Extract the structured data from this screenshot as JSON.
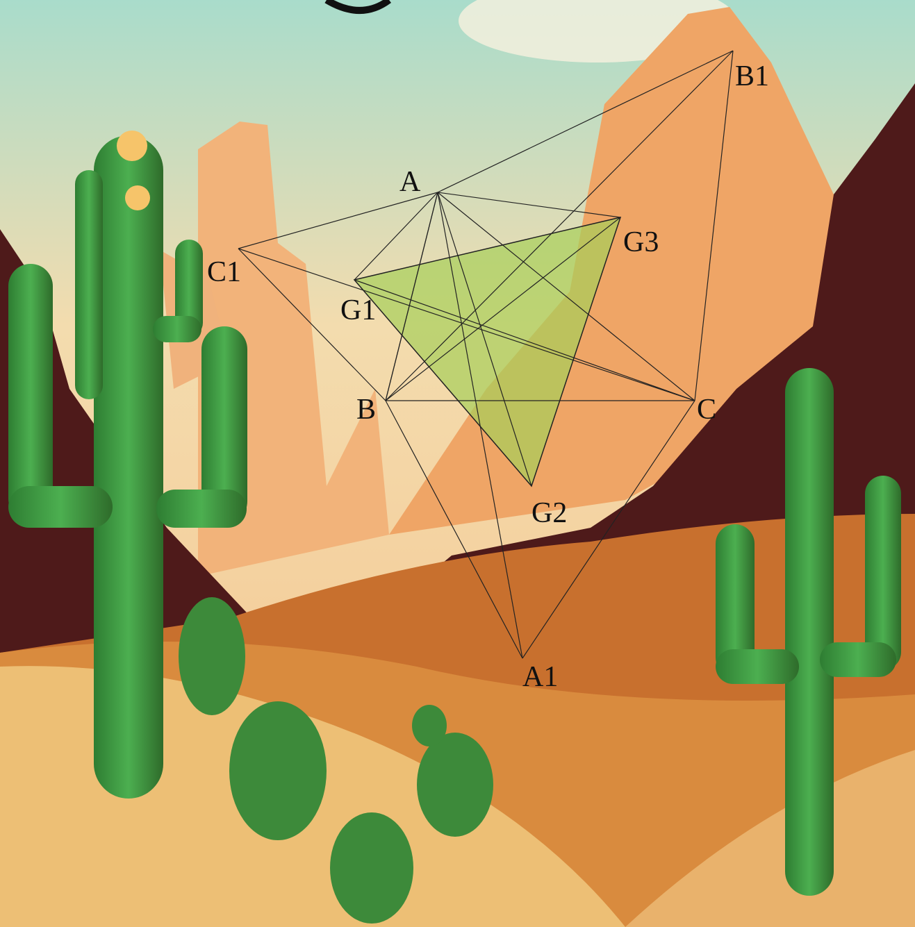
{
  "diagram": {
    "points": [
      {
        "label": "A"
      },
      {
        "label": "B"
      },
      {
        "label": "C"
      },
      {
        "label": "A1"
      },
      {
        "label": "B1"
      },
      {
        "label": "C1"
      },
      {
        "label": "G1"
      },
      {
        "label": "G2"
      },
      {
        "label": "G3"
      }
    ]
  }
}
